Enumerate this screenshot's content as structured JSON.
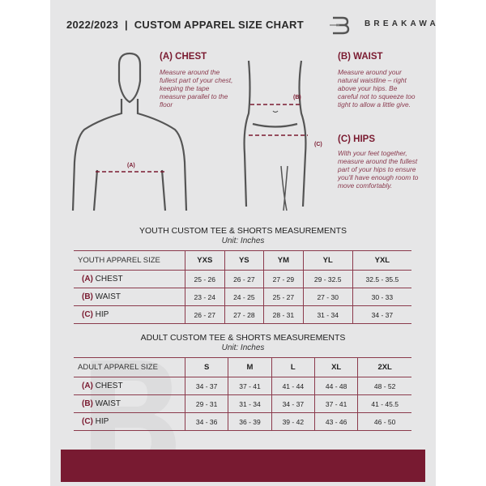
{
  "header": {
    "title": "2022/2023  |  CUSTOM APPAREL SIZE CHART",
    "brand": "BREAKAWAY"
  },
  "colors": {
    "accent": "#781a31",
    "background": "#e6e6e7"
  },
  "guide": {
    "chest": {
      "title": "(A) CHEST",
      "text": "Measure around the fullest part of your chest, keeping the tape measure parallel to the floor",
      "marker": "(A)"
    },
    "waist": {
      "title": "(B) WAIST",
      "text": "Measure around your natural waistline – right above your hips. Be careful not to squeeze too tight to allow a little give.",
      "marker": "(B)"
    },
    "hips": {
      "title": "(C) HIPS",
      "text": "With your feet together, measure around the fullest part of your hips to ensure you'll have enough room to move comfortably.",
      "marker": "(C)"
    }
  },
  "youth": {
    "title": "YOUTH CUSTOM TEE & SHORTS MEASUREMENTS",
    "unit": "Unit: Inches",
    "header": [
      "YOUTH APPAREL SIZE",
      "YXS",
      "YS",
      "YM",
      "YL",
      "YXL"
    ],
    "rows": [
      {
        "tag": "(A)",
        "name": "CHEST",
        "values": [
          "25 - 26",
          "26 - 27",
          "27 - 29",
          "29 - 32.5",
          "32.5 - 35.5"
        ]
      },
      {
        "tag": "(B)",
        "name": "WAIST",
        "values": [
          "23 - 24",
          "24 - 25",
          "25 - 27",
          "27 - 30",
          "30 - 33"
        ]
      },
      {
        "tag": "(C)",
        "name": "HIP",
        "values": [
          "26 - 27",
          "27 - 28",
          "28 - 31",
          "31 - 34",
          "34 - 37"
        ]
      }
    ]
  },
  "adult": {
    "title": "ADULT CUSTOM TEE & SHORTS MEASUREMENTS",
    "unit": "Unit: Inches",
    "header": [
      "ADULT APPAREL SIZE",
      "S",
      "M",
      "L",
      "XL",
      "2XL"
    ],
    "rows": [
      {
        "tag": "(A)",
        "name": "CHEST",
        "values": [
          "34 - 37",
          "37 - 41",
          "41 - 44",
          "44 - 48",
          "48 - 52"
        ]
      },
      {
        "tag": "(B)",
        "name": "WAIST",
        "values": [
          "29 - 31",
          "31 - 34",
          "34 - 37",
          "37 - 41",
          "41 - 45.5"
        ]
      },
      {
        "tag": "(C)",
        "name": "HIP",
        "values": [
          "34 - 36",
          "36 - 39",
          "39 - 42",
          "43 - 46",
          "46 - 50"
        ]
      }
    ]
  }
}
